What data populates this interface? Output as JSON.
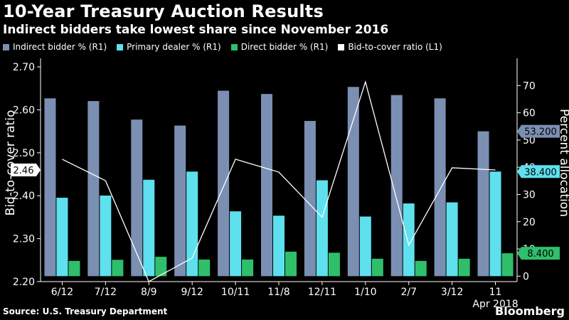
{
  "title": "10-Year Treasury Auction Results",
  "subtitle": "Indirect bidders take lowest share since November 2016",
  "source": "Source: U.S. Treasury Department",
  "brand": "Bloomberg",
  "legend": [
    {
      "label": "Indirect bidder % (R1)",
      "color": "#7b8fb2"
    },
    {
      "label": "Primary dealer % (R1)",
      "color": "#5ee0ee"
    },
    {
      "label": "Direct bidder % (R1)",
      "color": "#2fbf6b"
    },
    {
      "label": "Bid-to-cover ratio (L1)",
      "color": "#ffffff"
    }
  ],
  "chart_data": {
    "type": "bar",
    "title": "10-Year Treasury Auction Results",
    "subtitle": "Indirect bidders take lowest share since November 2016",
    "categories": [
      "6/12",
      "7/12",
      "8/9",
      "9/12",
      "10/11",
      "11/8",
      "12/11",
      "1/10",
      "2/7",
      "3/12",
      "11"
    ],
    "category_sublabel": "Apr 2018",
    "ylabel_left": "Bid-to-cover ratio",
    "ylabel_right": "Percent allocation",
    "ylim_left": [
      2.2,
      2.72
    ],
    "ylim_right": [
      -2,
      80
    ],
    "yticks_left": [
      2.2,
      2.3,
      2.4,
      2.5,
      2.6,
      2.7
    ],
    "yticks_right": [
      0,
      10,
      20,
      30,
      40,
      50,
      60,
      70
    ],
    "series": [
      {
        "name": "Indirect bidder % (R1)",
        "axis": "right",
        "kind": "bar",
        "color": "#7b8fb2",
        "values": [
          65.3,
          64.3,
          57.5,
          55.3,
          68.1,
          66.9,
          57.0,
          69.5,
          66.5,
          65.3,
          53.2
        ]
      },
      {
        "name": "Primary dealer % (R1)",
        "axis": "right",
        "kind": "bar",
        "color": "#5ee0ee",
        "values": [
          28.8,
          29.6,
          35.4,
          38.4,
          23.8,
          22.2,
          35.2,
          21.9,
          26.7,
          27.1,
          38.4
        ]
      },
      {
        "name": "Direct bidder % (R1)",
        "axis": "right",
        "kind": "bar",
        "color": "#2fbf6b",
        "values": [
          5.6,
          6.0,
          7.1,
          6.1,
          6.1,
          9.0,
          8.6,
          6.4,
          5.6,
          6.4,
          8.4
        ]
      },
      {
        "name": "Bid-to-cover ratio (L1)",
        "axis": "left",
        "kind": "line",
        "color": "#ffffff",
        "values": [
          2.485,
          2.435,
          2.2,
          2.255,
          2.485,
          2.455,
          2.35,
          2.665,
          2.285,
          2.465,
          2.46
        ]
      }
    ],
    "callouts": [
      {
        "axis": "left",
        "value": 2.46,
        "text": "2.46",
        "bg": "#ffffff",
        "fg": "#000000"
      },
      {
        "axis": "right",
        "value": 53.2,
        "text": "53.200",
        "bg": "#7b8fb2",
        "fg": "#000000"
      },
      {
        "axis": "right",
        "value": 38.4,
        "text": "38.400",
        "bg": "#5ee0ee",
        "fg": "#000000"
      },
      {
        "axis": "right",
        "value": 8.4,
        "text": "8.400",
        "bg": "#2fbf6b",
        "fg": "#000000"
      }
    ],
    "legend_position": "top-left",
    "grid": false
  }
}
